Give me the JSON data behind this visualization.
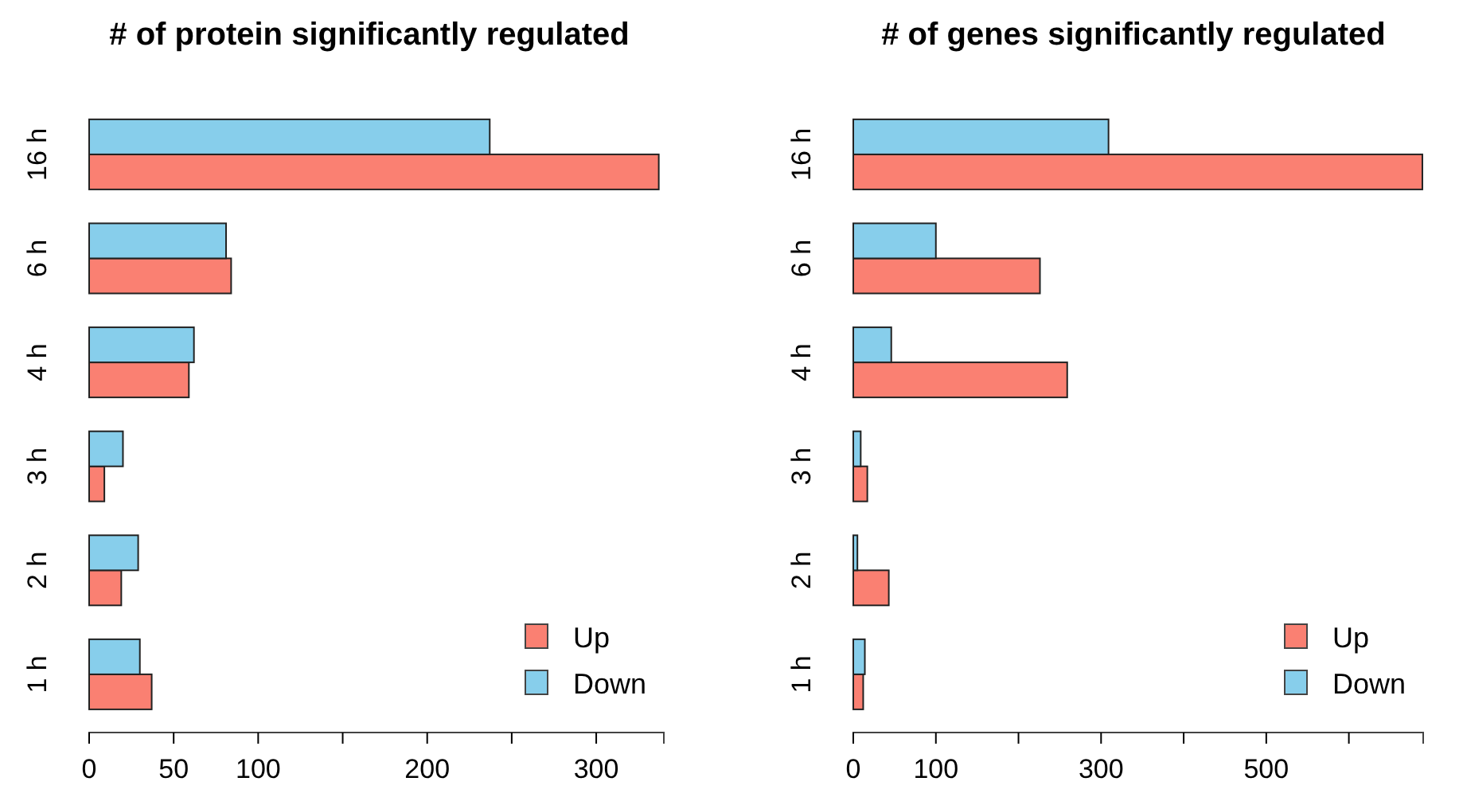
{
  "chart_data": [
    {
      "type": "bar",
      "orientation": "horizontal",
      "title": "# of protein significantly regulated",
      "categories": [
        "16 h",
        "6 h",
        "4 h",
        "3 h",
        "2 h",
        "1 h"
      ],
      "series": [
        {
          "name": "Up",
          "color": "#fa8072",
          "values": [
            337,
            84,
            59,
            9,
            19,
            37
          ]
        },
        {
          "name": "Down",
          "color": "#87ceeb",
          "values": [
            237,
            81,
            62,
            20,
            29,
            30
          ]
        }
      ],
      "xlim": [
        0,
        340
      ],
      "xticks": [
        0,
        50,
        100,
        {
          "value": 150,
          "label": null
        },
        200,
        {
          "value": 250,
          "label": null
        },
        300
      ],
      "legend": "bottom right",
      "grid": false
    },
    {
      "type": "bar",
      "orientation": "horizontal",
      "title": "# of genes significantly regulated",
      "categories": [
        "16 h",
        "6 h",
        "4 h",
        "3 h",
        "2 h",
        "1 h"
      ],
      "series": [
        {
          "name": "Up",
          "color": "#fa8072",
          "values": [
            689,
            226,
            259,
            17,
            43,
            12
          ]
        },
        {
          "name": "Down",
          "color": "#87ceeb",
          "values": [
            309,
            100,
            46,
            9,
            5,
            14
          ]
        }
      ],
      "xlim": [
        0,
        690
      ],
      "xticks": [
        0,
        100,
        {
          "value": 200,
          "label": null
        },
        300,
        {
          "value": 400,
          "label": null
        },
        500,
        {
          "value": 600,
          "label": null
        }
      ],
      "legend": "bottom right",
      "grid": false
    }
  ]
}
